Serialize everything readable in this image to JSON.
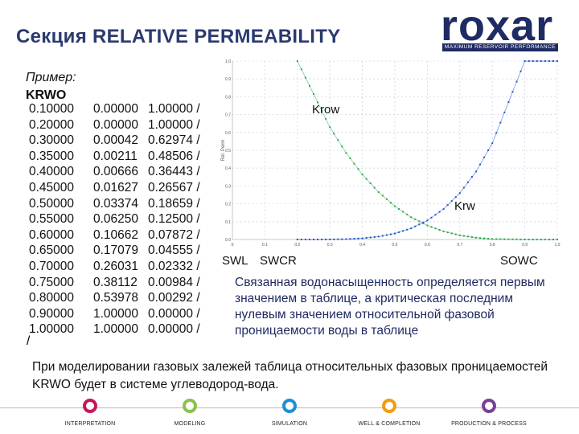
{
  "title": "Секция RELATIVE PERMEABILITY",
  "logo": {
    "name": "roxar",
    "tagline": "MAXIMUM RESERVOIR PERFORMANCE"
  },
  "example": {
    "label": "Пример:",
    "keyword": "KRWO"
  },
  "table": {
    "rows": [
      [
        "0.10000",
        "0.00000",
        "1.00000 /"
      ],
      [
        "0.20000",
        "0.00000",
        "1.00000 /"
      ],
      [
        "0.30000",
        "0.00042",
        "0.62974 /"
      ],
      [
        "0.35000",
        "0.00211",
        "0.48506 /"
      ],
      [
        "0.40000",
        "0.00666",
        "0.36443 /"
      ],
      [
        "0.45000",
        "0.01627",
        "0.26567 /"
      ],
      [
        "0.50000",
        "0.03374",
        "0.18659 /"
      ],
      [
        "0.55000",
        "0.06250",
        "0.12500 /"
      ],
      [
        "0.60000",
        "0.10662",
        "0.07872 /"
      ],
      [
        "0.65000",
        "0.17079",
        "0.04555 /"
      ],
      [
        "0.70000",
        "0.26031",
        "0.02332 /"
      ],
      [
        "0.75000",
        "0.38112",
        "0.00984 /"
      ],
      [
        "0.80000",
        "0.53978",
        "0.00292 /"
      ],
      [
        "0.90000",
        "1.00000",
        "0.00000 /"
      ],
      [
        "1.00000",
        "1.00000",
        "0.00000 /"
      ]
    ],
    "terminator": "/"
  },
  "chart_data": {
    "type": "line",
    "ylabel": "Rel. Perm",
    "xlim": [
      0,
      1.0
    ],
    "ylim": [
      0,
      1.0
    ],
    "x_ticks": [
      "0",
      "0.1",
      "0.2",
      "0.3",
      "0.4",
      "0.5",
      "0.6",
      "0.7",
      "0.8",
      "0.9",
      "1.0"
    ],
    "y_ticks": [
      "1.0",
      "0.9",
      "0.8",
      "0.7",
      "0.6",
      "0.5",
      "0.4",
      "0.3",
      "0.2",
      "0.1",
      "0.0"
    ],
    "grid": true,
    "series": [
      {
        "name": "Krow",
        "color": "#2aa84a",
        "x": [
          0.2,
          0.3,
          0.35,
          0.4,
          0.45,
          0.5,
          0.55,
          0.6,
          0.65,
          0.7,
          0.75,
          0.8,
          0.9,
          1.0
        ],
        "y": [
          1.0,
          0.62974,
          0.48506,
          0.36443,
          0.26567,
          0.18659,
          0.125,
          0.07872,
          0.04555,
          0.02332,
          0.00984,
          0.00292,
          0.0,
          0.0
        ]
      },
      {
        "name": "Krw",
        "color": "#1f55c8",
        "x": [
          0.2,
          0.3,
          0.35,
          0.4,
          0.45,
          0.5,
          0.55,
          0.6,
          0.65,
          0.7,
          0.75,
          0.8,
          0.9,
          1.0
        ],
        "y": [
          0.0,
          0.00042,
          0.00211,
          0.00666,
          0.01627,
          0.03374,
          0.0625,
          0.10662,
          0.17079,
          0.26031,
          0.38112,
          0.53978,
          1.0,
          1.0
        ]
      }
    ],
    "annotations": {
      "krow": "Krow",
      "krw": "Krw",
      "swl": "SWL",
      "swcr": "SWCR",
      "sowc": "SOWC"
    }
  },
  "description": "Связанная водонасыщенность определяется первым значением в таблице, а критическая последним нулевым значением относительной фазовой проницаемости воды в таблице",
  "footnote": "При моделировании газовых залежей таблица относительных фазовых проницаемостей KRWO будет в системе углеводород-вода.",
  "footer": {
    "items": [
      {
        "label": "INTERPRETATION",
        "color": "#c2185b"
      },
      {
        "label": "MODELING",
        "color": "#8bc34a"
      },
      {
        "label": "SIMULATION",
        "color": "#1f8fd6"
      },
      {
        "label": "WELL & COMPLETION",
        "color": "#f39c12"
      },
      {
        "label": "PRODUCTION & PROCESS",
        "color": "#7b3f99"
      }
    ]
  }
}
